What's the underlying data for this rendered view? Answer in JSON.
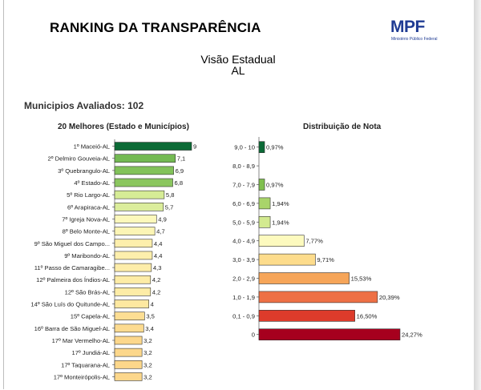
{
  "header": {
    "title": "RANKING DA TRANSPARÊNCIA",
    "view": "Visão Estadual",
    "state": "AL",
    "evaluated": "Municipios Avaliados: 102"
  },
  "logo": {
    "name": "MPF",
    "subtitle": "Ministério Público Federal",
    "color": "#1f3b93"
  },
  "chart_data": [
    {
      "type": "bar",
      "orientation": "horizontal",
      "title": "20 Melhores (Estado e Municípios)",
      "categories": [
        "1º Maceió-AL",
        "2º Delmiro Gouveia-AL",
        "3º Quebrangulo-AL",
        "4º Estado-AL",
        "5º Rio Largo-AL",
        "6º Arapiraca-AL",
        "7º Igreja Nova-AL",
        "8º Belo Monte-AL",
        "9º São Miguel dos Campo...",
        "9º Maribondo-AL",
        "11º Passo de Camaragibe...",
        "12º Palmeira dos Índios-AL",
        "12º São Brás-AL",
        "14º São Luís do Quitunde-AL",
        "15º Capela-AL",
        "16º Barra de São Miguel-AL",
        "17º Mar Vermelho-AL",
        "17º Jundiá-AL",
        "17º Taquarana-AL",
        "17º Monteirópolis-AL"
      ],
      "values": [
        9,
        7.1,
        6.9,
        6.8,
        5.8,
        5.7,
        4.9,
        4.7,
        4.4,
        4.4,
        4.3,
        4.2,
        4.2,
        4,
        3.5,
        3.4,
        3.2,
        3.2,
        3.2,
        3.2
      ],
      "value_labels": [
        "9",
        "7,1",
        "6,9",
        "6,8",
        "5,8",
        "5,7",
        "4,9",
        "4,7",
        "4,4",
        "4,4",
        "4,3",
        "4,2",
        "4,2",
        "4",
        "3,5",
        "3,4",
        "3,2",
        "3,2",
        "3,2",
        "3,2"
      ],
      "xlim": [
        0,
        10
      ]
    },
    {
      "type": "bar",
      "orientation": "horizontal",
      "title": "Distribuição de Nota",
      "categories": [
        "9,0 - 10",
        "8,0 - 8,9",
        "7,0 - 7,9",
        "6,0 - 6,9",
        "5,0 - 5,9",
        "4,0 - 4,9",
        "3,0 - 3,9",
        "2,0 - 2,9",
        "1,0 - 1,9",
        "0,1 - 0,9",
        "0"
      ],
      "values": [
        0.97,
        0,
        0.97,
        1.94,
        1.94,
        7.77,
        9.71,
        15.53,
        20.39,
        16.5,
        24.27
      ],
      "value_labels": [
        "0,97%",
        "",
        "0,97%",
        "1,94%",
        "1,94%",
        "7,77%",
        "9,71%",
        "15,53%",
        "20,39%",
        "16,50%",
        "24,27%"
      ],
      "colors": [
        "#0b6a36",
        "#3a9a45",
        "#7fbf4f",
        "#a9d46a",
        "#d3ea90",
        "#fdfabe",
        "#fddc8c",
        "#f6a559",
        "#ee7045",
        "#dd3b2b",
        "#a6001e"
      ],
      "xlim": [
        0,
        25
      ]
    }
  ]
}
